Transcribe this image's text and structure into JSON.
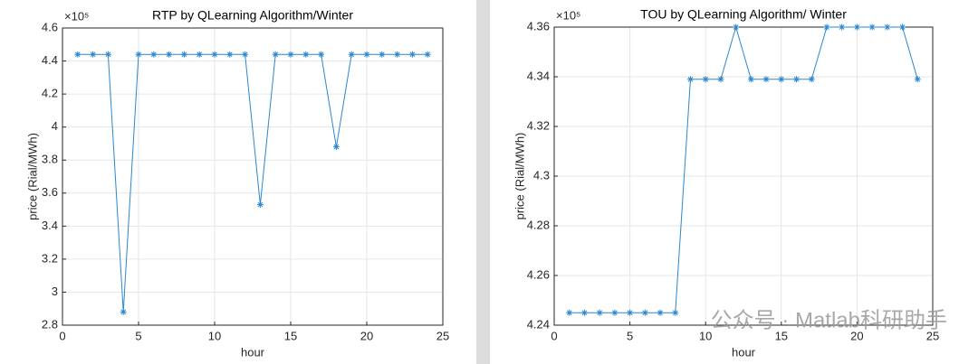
{
  "chart_data": [
    {
      "type": "line",
      "title": "RTP by QLearning Algorithm/Winter",
      "xlabel": "hour",
      "ylabel": "price (Rial/MWh)",
      "y_scale_label": "×10⁵",
      "x": [
        1,
        2,
        3,
        4,
        5,
        6,
        7,
        8,
        9,
        10,
        11,
        12,
        13,
        14,
        15,
        16,
        17,
        18,
        19,
        20,
        21,
        22,
        23,
        24
      ],
      "values": [
        4.44,
        4.44,
        4.44,
        2.88,
        4.44,
        4.44,
        4.44,
        4.44,
        4.44,
        4.44,
        4.44,
        4.44,
        3.53,
        4.44,
        4.44,
        4.44,
        4.44,
        3.88,
        4.44,
        4.44,
        4.44,
        4.44,
        4.44,
        4.44
      ],
      "color": "#2b86d0",
      "marker": "asterisk",
      "grid": true,
      "xlim": [
        0,
        25
      ],
      "xticks": [
        0,
        5,
        10,
        15,
        20,
        25
      ],
      "ylim": [
        2.8,
        4.6
      ],
      "yticks": [
        2.8,
        3,
        3.2,
        3.4,
        3.6,
        3.8,
        4,
        4.2,
        4.4,
        4.6
      ]
    },
    {
      "type": "line",
      "title": "TOU by QLearning Algorithm/ Winter",
      "xlabel": "hour",
      "ylabel": "price (Rial/MWh)",
      "y_scale_label": "×10⁵",
      "x": [
        1,
        2,
        3,
        4,
        5,
        6,
        7,
        8,
        9,
        10,
        11,
        12,
        13,
        14,
        15,
        16,
        17,
        18,
        19,
        20,
        21,
        22,
        23,
        24
      ],
      "values": [
        4.245,
        4.245,
        4.245,
        4.245,
        4.245,
        4.245,
        4.245,
        4.245,
        4.339,
        4.339,
        4.339,
        4.36,
        4.339,
        4.339,
        4.339,
        4.339,
        4.339,
        4.36,
        4.36,
        4.36,
        4.36,
        4.36,
        4.36,
        4.339
      ],
      "color": "#2b86d0",
      "marker": "asterisk",
      "grid": true,
      "xlim": [
        0,
        25
      ],
      "xticks": [
        0,
        5,
        10,
        15,
        20,
        25
      ],
      "ylim": [
        4.24,
        4.36
      ],
      "yticks": [
        4.24,
        4.26,
        4.28,
        4.3,
        4.32,
        4.34,
        4.36
      ]
    }
  ],
  "watermark": "公众号 · Matlab科研助手"
}
